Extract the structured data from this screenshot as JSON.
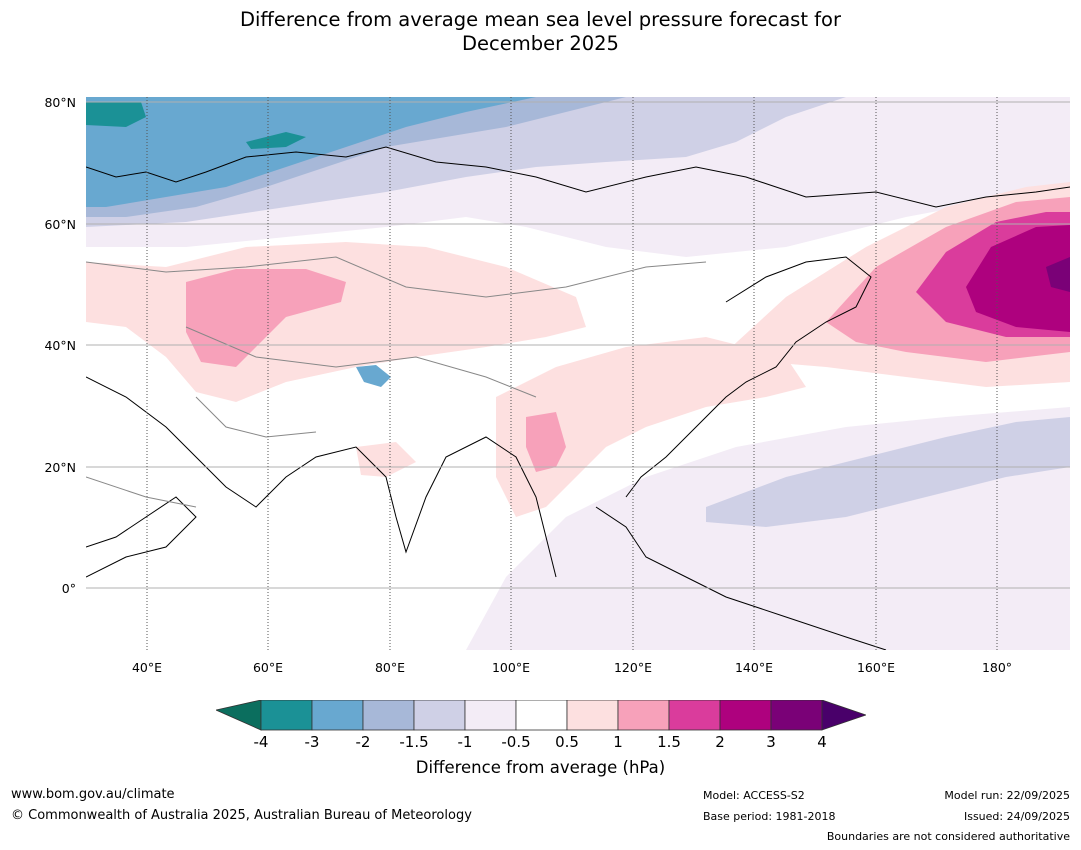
{
  "title": {
    "line1": "Difference from average mean sea level pressure forecast for",
    "line2": "December 2025"
  },
  "map": {
    "lat_labels": [
      "80°N",
      "60°N",
      "40°N",
      "20°N",
      "0°"
    ],
    "lon_labels": [
      "40°E",
      "60°E",
      "80°E",
      "100°E",
      "120°E",
      "140°E",
      "160°E",
      "180°"
    ],
    "extent": {
      "lon_min": 30,
      "lon_max": 192,
      "lat_min": -10,
      "lat_max": 81
    }
  },
  "colorbar": {
    "title": "Difference from average (hPa)",
    "ticks": [
      "-4",
      "-3",
      "-2",
      "-1.5",
      "-1",
      "-0.5",
      "0.5",
      "1",
      "1.5",
      "2",
      "3",
      "4"
    ],
    "colors": {
      "below_-4": "#0b6e5e",
      "-4_-3": "#1b9196",
      "-3_-2": "#68a8d0",
      "-2_-1.5": "#a7b8d8",
      "-1.5_-1": "#cfd0e6",
      "-1_-0.5": "#f3ecf6",
      "-0.5_0.5": "#ffffff",
      "0.5_1": "#fde0e0",
      "1_1.5": "#f7a1ba",
      "1.5_2": "#da3c9c",
      "2_3": "#ae017e",
      "3_4": "#7a0177",
      "above_4": "#49006a"
    }
  },
  "footer": {
    "url": "www.bom.gov.au/climate",
    "copyright": "© Commonwealth of Australia 2025, Australian Bureau of Meteorology",
    "model": "Model: ACCESS-S2",
    "base_period": "Base period: 1981-2018",
    "model_run": "Model run: 22/09/2025",
    "issued": "Issued: 24/09/2025",
    "disclaimer": "Boundaries are not considered authoritative"
  }
}
